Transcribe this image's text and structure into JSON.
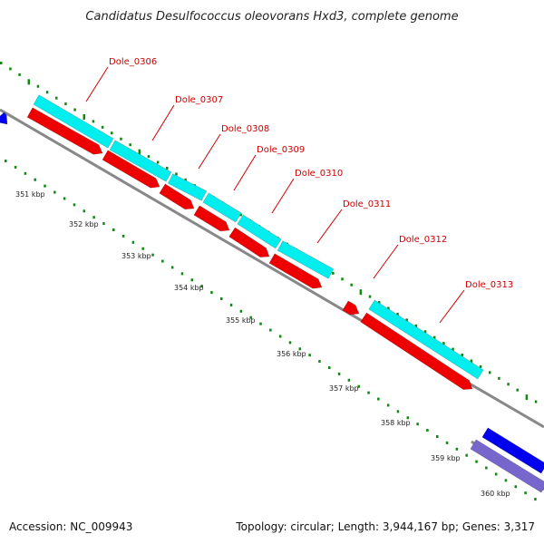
{
  "title": "Candidatus Desulfococcus oleovorans Hxd3, complete genome",
  "footer": {
    "accession": "Accession: NC_009943",
    "topology": "Topology: circular; Length: 3,944,167 bp; Genes: 3,317"
  },
  "colors": {
    "backbone": "#888888",
    "cds_forward": "#00eeee",
    "cds_reverse": "#ee0000",
    "gene_blue": "#0000ee",
    "gene_purple": "#7766cc",
    "gc_dots": "#118811",
    "label_red": "#cc0000"
  },
  "kbp_ticks": [
    "351 kbp",
    "352 kbp",
    "353 kbp",
    "354 kbp",
    "355 kbp",
    "356 kbp",
    "357 kbp",
    "358 kbp",
    "359 kbp",
    "360 kbp"
  ],
  "gene_labels": [
    "Dole_0306",
    "Dole_0307",
    "Dole_0308",
    "Dole_0309",
    "Dole_0310",
    "Dole_0311",
    "Dole_0312",
    "Dole_0313"
  ]
}
